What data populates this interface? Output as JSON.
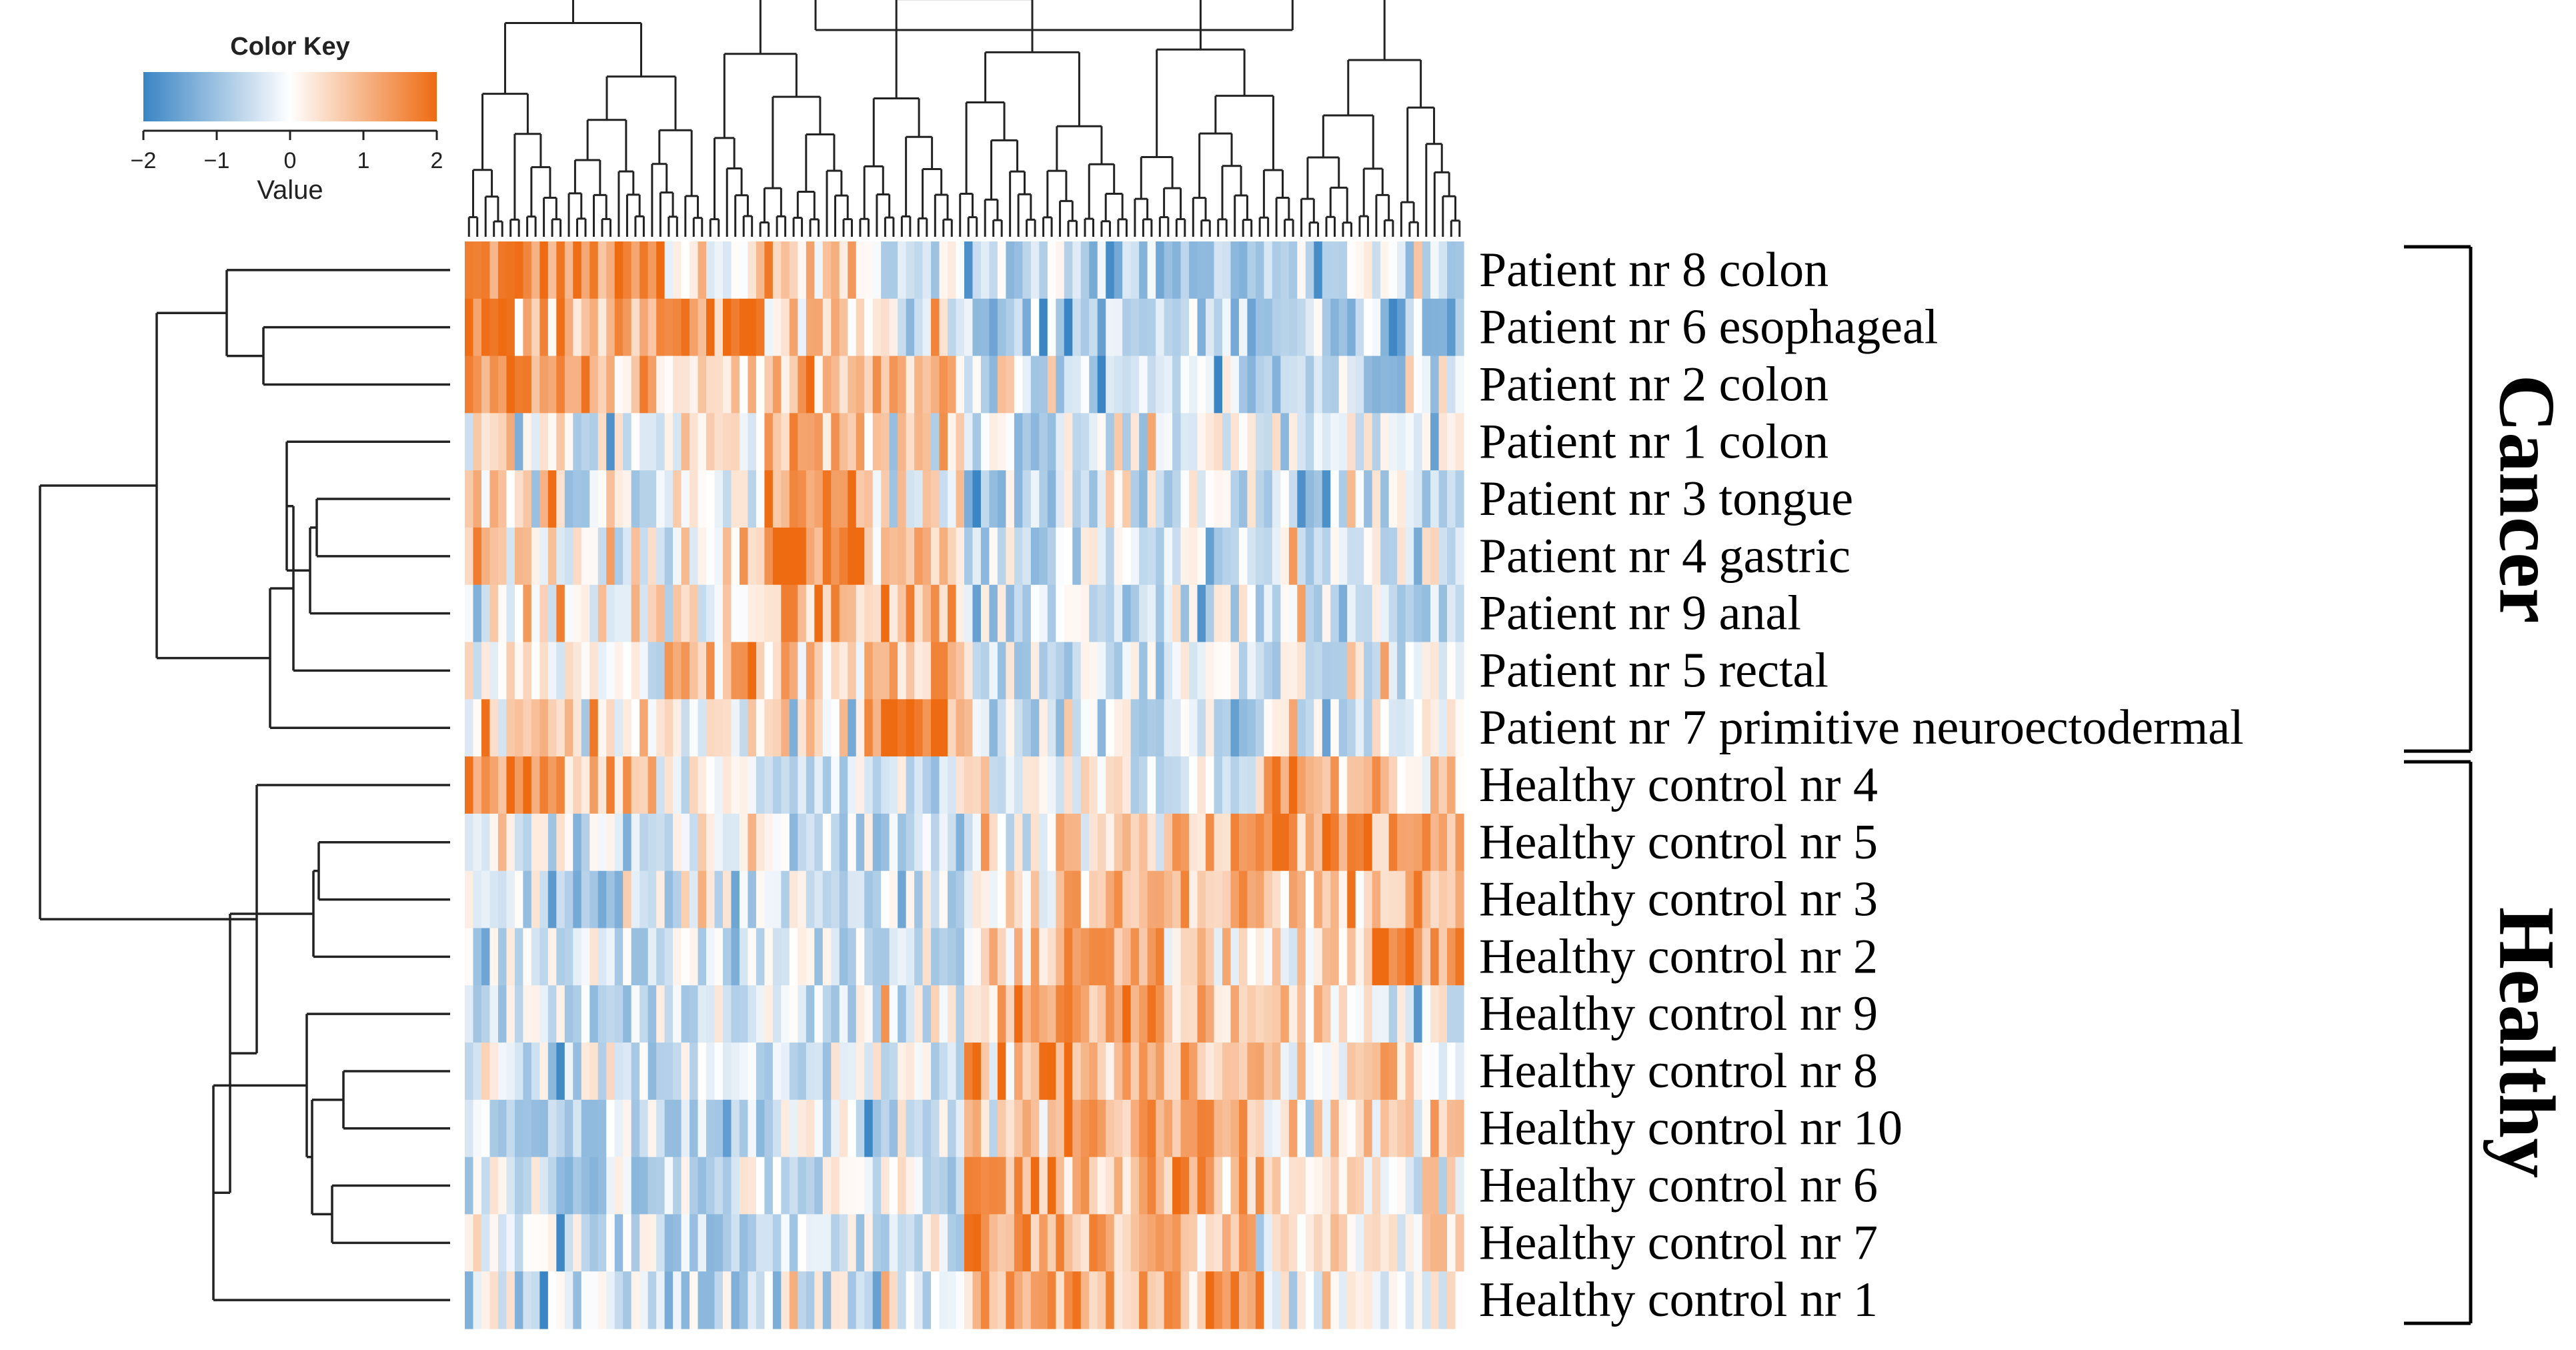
{
  "chart_data": {
    "type": "heatmap",
    "title": "",
    "color_key": {
      "title": "Color Key",
      "xlabel": "Value",
      "range": [
        -2,
        2
      ],
      "ticks": [
        -2,
        -1,
        0,
        1,
        2
      ],
      "tick_labels": [
        "−2",
        "−1",
        "0",
        "1",
        "2"
      ],
      "low_color": "#3a85c4",
      "mid_color": "#ffffff",
      "high_color": "#ee6b12"
    },
    "rows": [
      "Patient nr 8 colon",
      "Patient nr 6 esophageal",
      "Patient nr 2 colon",
      "Patient nr 1 colon",
      "Patient nr 3 tongue",
      "Patient nr 4 gastric",
      "Patient nr 9 anal",
      "Patient nr 5 rectal",
      "Patient nr 7 primitive neuroectodermal",
      "Healthy control nr 4",
      "Healthy control nr 5",
      "Healthy control nr 3",
      "Healthy control nr 2",
      "Healthy control nr 9",
      "Healthy control nr 8",
      "Healthy control nr 10",
      "Healthy control nr 6",
      "Healthy control nr 7",
      "Healthy control nr 1"
    ],
    "column_count": 120,
    "value_pattern": {
      "note": "Approximate column-block means read from the heatmap; columns grouped into 10 blocks of 12. Cancer rows are high (orange) in left blocks, healthy rows high in right blocks.",
      "block_means": [
        [
          1.5,
          1.3,
          0.4,
          0.6,
          -0.2,
          -0.6,
          -0.8,
          -0.8,
          -0.6,
          -0.5
        ],
        [
          1.5,
          0.9,
          1.6,
          0.4,
          0.1,
          -0.7,
          -0.8,
          -0.7,
          -0.6,
          -0.5
        ],
        [
          1.6,
          0.5,
          0.6,
          0.7,
          0.8,
          -0.7,
          -0.8,
          -0.6,
          -0.5,
          -0.5
        ],
        [
          0.2,
          -0.2,
          0.3,
          1.0,
          0.6,
          -0.5,
          -0.4,
          0.1,
          -0.4,
          -0.3
        ],
        [
          0.5,
          -0.3,
          0.0,
          1.4,
          0.2,
          -0.5,
          -0.4,
          -0.3,
          -0.4,
          -0.3
        ],
        [
          0.3,
          -0.3,
          0.2,
          1.6,
          0.7,
          -0.4,
          -0.5,
          -0.4,
          -0.3,
          -0.2
        ],
        [
          0.2,
          0.3,
          0.0,
          1.0,
          1.0,
          -0.4,
          -0.6,
          -0.3,
          -0.2,
          -0.3
        ],
        [
          -0.1,
          -0.2,
          0.9,
          0.7,
          0.9,
          -0.3,
          -0.4,
          -0.3,
          -0.2,
          -0.2
        ],
        [
          0.3,
          0.5,
          0.1,
          0.3,
          1.7,
          -0.5,
          -0.4,
          -0.4,
          -0.2,
          -0.2
        ],
        [
          1.2,
          1.0,
          -0.2,
          -0.3,
          -0.4,
          -0.2,
          -0.2,
          -0.1,
          0.8,
          0.4
        ],
        [
          -0.3,
          -0.5,
          -0.4,
          -0.4,
          -0.5,
          -0.2,
          0.3,
          0.9,
          1.2,
          1.0
        ],
        [
          -0.4,
          -0.6,
          -0.4,
          -0.4,
          -0.3,
          0.4,
          0.8,
          1.0,
          0.6,
          1.2
        ],
        [
          -0.3,
          -0.4,
          -0.5,
          -0.5,
          -0.3,
          0.6,
          1.0,
          0.4,
          0.3,
          1.4
        ],
        [
          -0.4,
          -0.4,
          -0.3,
          -0.5,
          -0.2,
          0.9,
          1.3,
          0.9,
          0.5,
          -0.1
        ],
        [
          -0.5,
          -0.4,
          -0.4,
          -0.3,
          -0.2,
          1.3,
          0.9,
          1.0,
          0.4,
          0.4
        ],
        [
          -0.4,
          -0.5,
          -0.4,
          -0.4,
          -0.3,
          0.6,
          1.1,
          1.0,
          0.5,
          0.3
        ],
        [
          -0.4,
          -0.5,
          -0.4,
          -0.3,
          -0.3,
          1.1,
          0.9,
          1.1,
          0.4,
          0.4
        ],
        [
          -0.3,
          -0.4,
          -0.4,
          -0.3,
          -0.2,
          1.3,
          1.0,
          0.7,
          0.4,
          0.3
        ],
        [
          -0.6,
          -0.5,
          -0.5,
          -0.4,
          -0.2,
          1.0,
          1.1,
          1.3,
          0.3,
          0.2
        ]
      ]
    },
    "groups": [
      {
        "label": "Cancer",
        "rows": [
          0,
          8
        ]
      },
      {
        "label": "Healthy",
        "rows": [
          9,
          18
        ]
      }
    ],
    "row_dendrogram": true,
    "column_dendrogram": true
  }
}
